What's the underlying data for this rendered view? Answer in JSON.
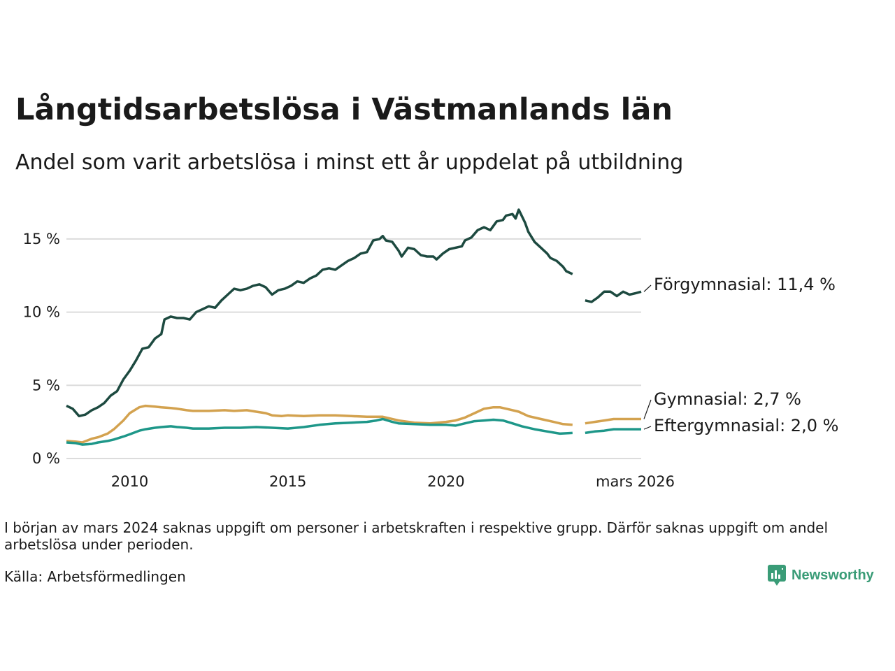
{
  "title": "Långtidsarbetslösa i Västmanlands län",
  "subtitle": "Andel som varit arbetslösa i minst ett år uppdelat på utbildning",
  "note": "I början av mars 2024 saknas uppgift om personer i arbetskraften i respektive grupp. Därför saknas uppgift om andel arbetslösa under perioden.",
  "source": "Källa: Arbetsförmedlingen",
  "brand": {
    "name": "Newsworthy",
    "icon": "newsworthy-logo-icon",
    "color": "#3a9c77"
  },
  "chart_data": {
    "type": "line",
    "title": "Långtidsarbetslösa i Västmanlands län",
    "xlabel": "",
    "ylabel": "",
    "xlim": [
      2008.0,
      2026.17
    ],
    "ylim": [
      0,
      17
    ],
    "y_ticks": [
      0,
      5,
      10,
      15
    ],
    "y_tick_labels": [
      "0 %",
      "5 %",
      "10 %",
      "15 %"
    ],
    "x_ticks": [
      2010,
      2015,
      2020,
      2026.17
    ],
    "x_tick_labels": [
      "2010",
      "2015",
      "2020",
      "mars 2026"
    ],
    "grid": true,
    "gap": [
      2024.0,
      2024.4
    ],
    "series": [
      {
        "name": "Förgymnasial",
        "label": "Förgymnasial: 11,4 %",
        "color": "#1d4a40",
        "points": [
          [
            2008.0,
            3.6
          ],
          [
            2008.2,
            3.4
          ],
          [
            2008.4,
            2.9
          ],
          [
            2008.6,
            3.0
          ],
          [
            2008.8,
            3.3
          ],
          [
            2009.0,
            3.5
          ],
          [
            2009.2,
            3.8
          ],
          [
            2009.4,
            4.3
          ],
          [
            2009.6,
            4.6
          ],
          [
            2009.8,
            5.4
          ],
          [
            2010.0,
            6.0
          ],
          [
            2010.2,
            6.7
          ],
          [
            2010.4,
            7.5
          ],
          [
            2010.6,
            7.6
          ],
          [
            2010.8,
            8.2
          ],
          [
            2011.0,
            8.5
          ],
          [
            2011.1,
            9.5
          ],
          [
            2011.3,
            9.7
          ],
          [
            2011.5,
            9.6
          ],
          [
            2011.7,
            9.6
          ],
          [
            2011.9,
            9.5
          ],
          [
            2012.1,
            10.0
          ],
          [
            2012.3,
            10.2
          ],
          [
            2012.5,
            10.4
          ],
          [
            2012.7,
            10.3
          ],
          [
            2012.9,
            10.8
          ],
          [
            2013.1,
            11.2
          ],
          [
            2013.3,
            11.6
          ],
          [
            2013.5,
            11.5
          ],
          [
            2013.7,
            11.6
          ],
          [
            2013.9,
            11.8
          ],
          [
            2014.1,
            11.9
          ],
          [
            2014.3,
            11.7
          ],
          [
            2014.5,
            11.2
          ],
          [
            2014.7,
            11.5
          ],
          [
            2014.9,
            11.6
          ],
          [
            2015.1,
            11.8
          ],
          [
            2015.3,
            12.1
          ],
          [
            2015.5,
            12.0
          ],
          [
            2015.7,
            12.3
          ],
          [
            2015.9,
            12.5
          ],
          [
            2016.1,
            12.9
          ],
          [
            2016.3,
            13.0
          ],
          [
            2016.5,
            12.9
          ],
          [
            2016.7,
            13.2
          ],
          [
            2016.9,
            13.5
          ],
          [
            2017.1,
            13.7
          ],
          [
            2017.3,
            14.0
          ],
          [
            2017.5,
            14.1
          ],
          [
            2017.7,
            14.9
          ],
          [
            2017.9,
            15.0
          ],
          [
            2018.0,
            15.2
          ],
          [
            2018.1,
            14.9
          ],
          [
            2018.3,
            14.8
          ],
          [
            2018.5,
            14.2
          ],
          [
            2018.6,
            13.8
          ],
          [
            2018.8,
            14.4
          ],
          [
            2019.0,
            14.3
          ],
          [
            2019.2,
            13.9
          ],
          [
            2019.4,
            13.8
          ],
          [
            2019.6,
            13.8
          ],
          [
            2019.7,
            13.6
          ],
          [
            2019.9,
            14.0
          ],
          [
            2020.1,
            14.3
          ],
          [
            2020.3,
            14.4
          ],
          [
            2020.5,
            14.5
          ],
          [
            2020.6,
            14.9
          ],
          [
            2020.8,
            15.1
          ],
          [
            2021.0,
            15.6
          ],
          [
            2021.2,
            15.8
          ],
          [
            2021.4,
            15.6
          ],
          [
            2021.6,
            16.2
          ],
          [
            2021.8,
            16.3
          ],
          [
            2021.9,
            16.6
          ],
          [
            2022.1,
            16.7
          ],
          [
            2022.2,
            16.4
          ],
          [
            2022.3,
            17.0
          ],
          [
            2022.5,
            16.1
          ],
          [
            2022.6,
            15.5
          ],
          [
            2022.8,
            14.8
          ],
          [
            2023.0,
            14.4
          ],
          [
            2023.2,
            14.0
          ],
          [
            2023.3,
            13.7
          ],
          [
            2023.5,
            13.5
          ],
          [
            2023.7,
            13.1
          ],
          [
            2023.8,
            12.8
          ],
          [
            2024.0,
            12.6
          ]
        ],
        "points2": [
          [
            2024.4,
            10.8
          ],
          [
            2024.6,
            10.7
          ],
          [
            2024.8,
            11.0
          ],
          [
            2025.0,
            11.4
          ],
          [
            2025.2,
            11.4
          ],
          [
            2025.4,
            11.1
          ],
          [
            2025.6,
            11.4
          ],
          [
            2025.8,
            11.2
          ],
          [
            2026.0,
            11.3
          ],
          [
            2026.17,
            11.4
          ]
        ]
      },
      {
        "name": "Gymnasial",
        "label": "Gymnasial:  2,7 %",
        "color": "#d3a24f",
        "points": [
          [
            2008.0,
            1.2
          ],
          [
            2008.3,
            1.15
          ],
          [
            2008.5,
            1.1
          ],
          [
            2008.8,
            1.35
          ],
          [
            2009.0,
            1.45
          ],
          [
            2009.3,
            1.7
          ],
          [
            2009.5,
            2.0
          ],
          [
            2009.8,
            2.6
          ],
          [
            2010.0,
            3.1
          ],
          [
            2010.3,
            3.5
          ],
          [
            2010.5,
            3.6
          ],
          [
            2010.8,
            3.55
          ],
          [
            2011.0,
            3.5
          ],
          [
            2011.3,
            3.45
          ],
          [
            2011.5,
            3.4
          ],
          [
            2011.8,
            3.3
          ],
          [
            2012.0,
            3.25
          ],
          [
            2012.5,
            3.25
          ],
          [
            2013.0,
            3.3
          ],
          [
            2013.3,
            3.25
          ],
          [
            2013.7,
            3.3
          ],
          [
            2014.0,
            3.2
          ],
          [
            2014.3,
            3.1
          ],
          [
            2014.5,
            2.95
          ],
          [
            2014.8,
            2.9
          ],
          [
            2015.0,
            2.95
          ],
          [
            2015.5,
            2.9
          ],
          [
            2016.0,
            2.95
          ],
          [
            2016.5,
            2.95
          ],
          [
            2017.0,
            2.9
          ],
          [
            2017.5,
            2.85
          ],
          [
            2018.0,
            2.85
          ],
          [
            2018.5,
            2.6
          ],
          [
            2019.0,
            2.45
          ],
          [
            2019.5,
            2.4
          ],
          [
            2020.0,
            2.5
          ],
          [
            2020.3,
            2.6
          ],
          [
            2020.6,
            2.8
          ],
          [
            2020.9,
            3.1
          ],
          [
            2021.2,
            3.4
          ],
          [
            2021.5,
            3.5
          ],
          [
            2021.7,
            3.5
          ],
          [
            2022.0,
            3.35
          ],
          [
            2022.3,
            3.2
          ],
          [
            2022.6,
            2.9
          ],
          [
            2023.0,
            2.7
          ],
          [
            2023.4,
            2.5
          ],
          [
            2023.7,
            2.35
          ],
          [
            2024.0,
            2.3
          ]
        ],
        "points2": [
          [
            2024.4,
            2.4
          ],
          [
            2024.7,
            2.5
          ],
          [
            2025.0,
            2.6
          ],
          [
            2025.3,
            2.7
          ],
          [
            2025.7,
            2.7
          ],
          [
            2026.17,
            2.7
          ]
        ]
      },
      {
        "name": "Eftergymnasial",
        "label": "Eftergymnasial:  2,0 %",
        "color": "#1e9789",
        "points": [
          [
            2008.0,
            1.1
          ],
          [
            2008.3,
            1.05
          ],
          [
            2008.5,
            0.95
          ],
          [
            2008.8,
            1.0
          ],
          [
            2009.0,
            1.1
          ],
          [
            2009.3,
            1.2
          ],
          [
            2009.5,
            1.3
          ],
          [
            2009.8,
            1.5
          ],
          [
            2010.0,
            1.65
          ],
          [
            2010.3,
            1.9
          ],
          [
            2010.5,
            2.0
          ],
          [
            2010.8,
            2.1
          ],
          [
            2011.0,
            2.15
          ],
          [
            2011.3,
            2.2
          ],
          [
            2011.5,
            2.15
          ],
          [
            2011.8,
            2.1
          ],
          [
            2012.0,
            2.05
          ],
          [
            2012.5,
            2.05
          ],
          [
            2013.0,
            2.1
          ],
          [
            2013.5,
            2.1
          ],
          [
            2014.0,
            2.15
          ],
          [
            2014.5,
            2.1
          ],
          [
            2015.0,
            2.05
          ],
          [
            2015.5,
            2.15
          ],
          [
            2016.0,
            2.3
          ],
          [
            2016.5,
            2.4
          ],
          [
            2017.0,
            2.45
          ],
          [
            2017.5,
            2.5
          ],
          [
            2017.8,
            2.6
          ],
          [
            2018.0,
            2.7
          ],
          [
            2018.3,
            2.5
          ],
          [
            2018.5,
            2.4
          ],
          [
            2019.0,
            2.35
          ],
          [
            2019.5,
            2.3
          ],
          [
            2020.0,
            2.3
          ],
          [
            2020.3,
            2.25
          ],
          [
            2020.6,
            2.4
          ],
          [
            2020.9,
            2.55
          ],
          [
            2021.2,
            2.6
          ],
          [
            2021.5,
            2.65
          ],
          [
            2021.8,
            2.6
          ],
          [
            2022.1,
            2.4
          ],
          [
            2022.4,
            2.2
          ],
          [
            2022.8,
            2.0
          ],
          [
            2023.2,
            1.85
          ],
          [
            2023.6,
            1.7
          ],
          [
            2024.0,
            1.75
          ]
        ],
        "points2": [
          [
            2024.4,
            1.75
          ],
          [
            2024.7,
            1.85
          ],
          [
            2025.0,
            1.9
          ],
          [
            2025.3,
            2.0
          ],
          [
            2025.7,
            2.0
          ],
          [
            2026.17,
            2.0
          ]
        ]
      }
    ]
  }
}
